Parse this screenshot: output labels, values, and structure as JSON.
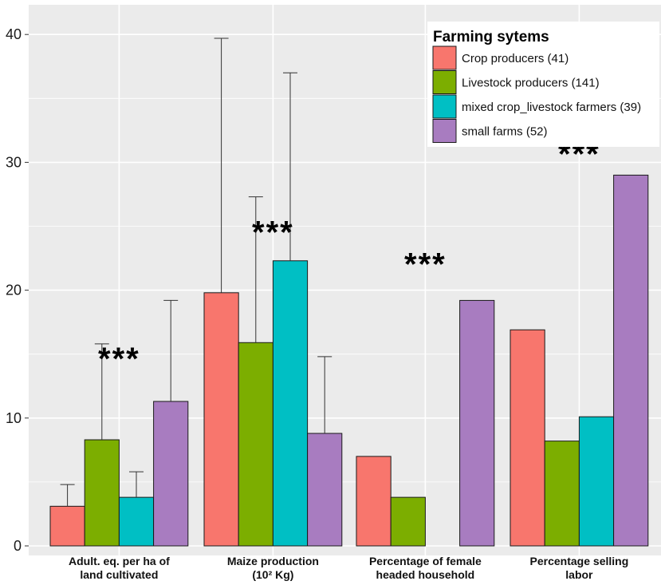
{
  "chart_data": {
    "type": "bar",
    "categories": [
      [
        "Adult. eq. per ha of",
        "land cultivated"
      ],
      [
        "Maize production",
        "(10² Kg)"
      ],
      [
        "Percentage of female",
        "headed household"
      ],
      [
        "Percentage selling",
        "labor"
      ]
    ],
    "series": [
      {
        "name": "Crop producers (41)",
        "color": "#F8766D",
        "values": [
          3.1,
          19.8,
          7.0,
          16.9
        ],
        "error_upper": [
          4.8,
          39.7,
          null,
          null
        ]
      },
      {
        "name": "Livestock producers (141)",
        "color": "#7CAE00",
        "values": [
          8.3,
          15.9,
          3.8,
          8.2
        ],
        "error_upper": [
          15.8,
          27.3,
          null,
          null
        ]
      },
      {
        "name": "mixed crop_livestock farmers (39)",
        "color": "#00BFC4",
        "values": [
          3.8,
          22.3,
          0,
          10.1
        ],
        "error_upper": [
          5.8,
          37.0,
          null,
          null
        ]
      },
      {
        "name": "small farms (52)",
        "color": "#A87CC0",
        "values": [
          11.3,
          8.8,
          19.2,
          29.0
        ],
        "error_upper": [
          19.2,
          14.8,
          null,
          null
        ]
      }
    ],
    "significance": [
      {
        "category_index": 0,
        "label": "***",
        "y": 13.8
      },
      {
        "category_index": 1,
        "label": "***",
        "y": 23.7
      },
      {
        "category_index": 2,
        "label": "***",
        "y": 21.2
      },
      {
        "category_index": 3,
        "label": "***",
        "y": 29.8
      }
    ],
    "ylim": [
      -0.5,
      42
    ],
    "y_ticks": [
      0,
      10,
      20,
      30,
      40
    ],
    "xlabel": "",
    "ylabel": "",
    "grid": true,
    "legend": {
      "title": "Farming sytems",
      "position": "top-right"
    },
    "colors": {
      "panel_background": "#EBEBEB",
      "grid": "#FFFFFF",
      "bar_outline": "#1A1A1A"
    }
  }
}
